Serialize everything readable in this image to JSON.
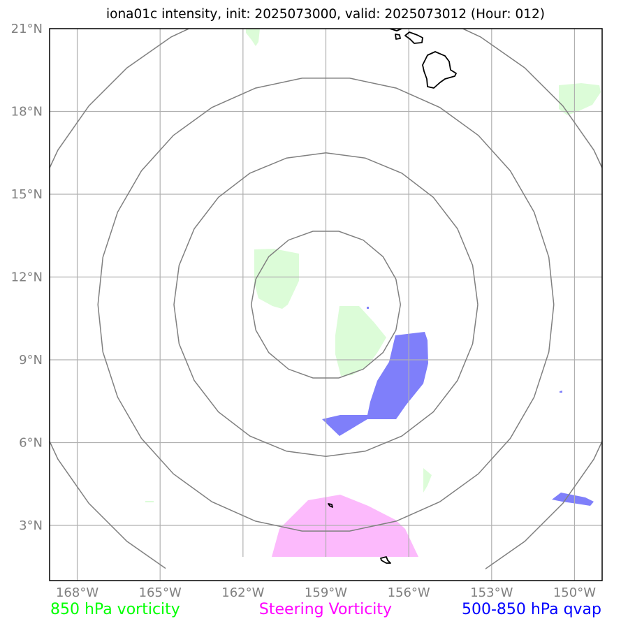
{
  "title": "iona01c intensity, init: 2025073000, valid: 2025073012 (Hour: 012)",
  "map": {
    "extent": {
      "lon_min": -169.0,
      "lon_max": -149.0,
      "lat_min": 1.0,
      "lat_max": 21.0
    },
    "lon_ticks": [
      {
        "value": -168,
        "label": "168°W"
      },
      {
        "value": -165,
        "label": "165°W"
      },
      {
        "value": -162,
        "label": "162°W"
      },
      {
        "value": -159,
        "label": "159°W"
      },
      {
        "value": -156,
        "label": "156°W"
      },
      {
        "value": -153,
        "label": "153°W"
      },
      {
        "value": -150,
        "label": "150°W"
      }
    ],
    "lat_ticks": [
      {
        "value": 21,
        "label": "21°N"
      },
      {
        "value": 18,
        "label": "18°N"
      },
      {
        "value": 15,
        "label": "15°N"
      },
      {
        "value": 12,
        "label": "12°N"
      },
      {
        "value": 9,
        "label": "9°N"
      },
      {
        "value": 6,
        "label": "6°N"
      },
      {
        "value": 3,
        "label": "3°N"
      }
    ],
    "center": {
      "lon": -159.0,
      "lat": 11.0
    },
    "ring_radii_deg": [
      2.7,
      5.5,
      8.25,
      11.2
    ],
    "ring_color": "#808080",
    "grid_color": "#b0b0b0",
    "coastline_color": "#000000",
    "vort850_color": "#dcfcd8",
    "steering_color": "#fcbafc",
    "qvap_color": "#7f7ffa"
  },
  "legend": [
    {
      "label": "850 hPa vorticity",
      "color": "#00ff00"
    },
    {
      "label": "Steering Vorticity",
      "color": "#ff00ff"
    },
    {
      "label": "500-850 hPa qvap",
      "color": "#0000ff"
    }
  ]
}
